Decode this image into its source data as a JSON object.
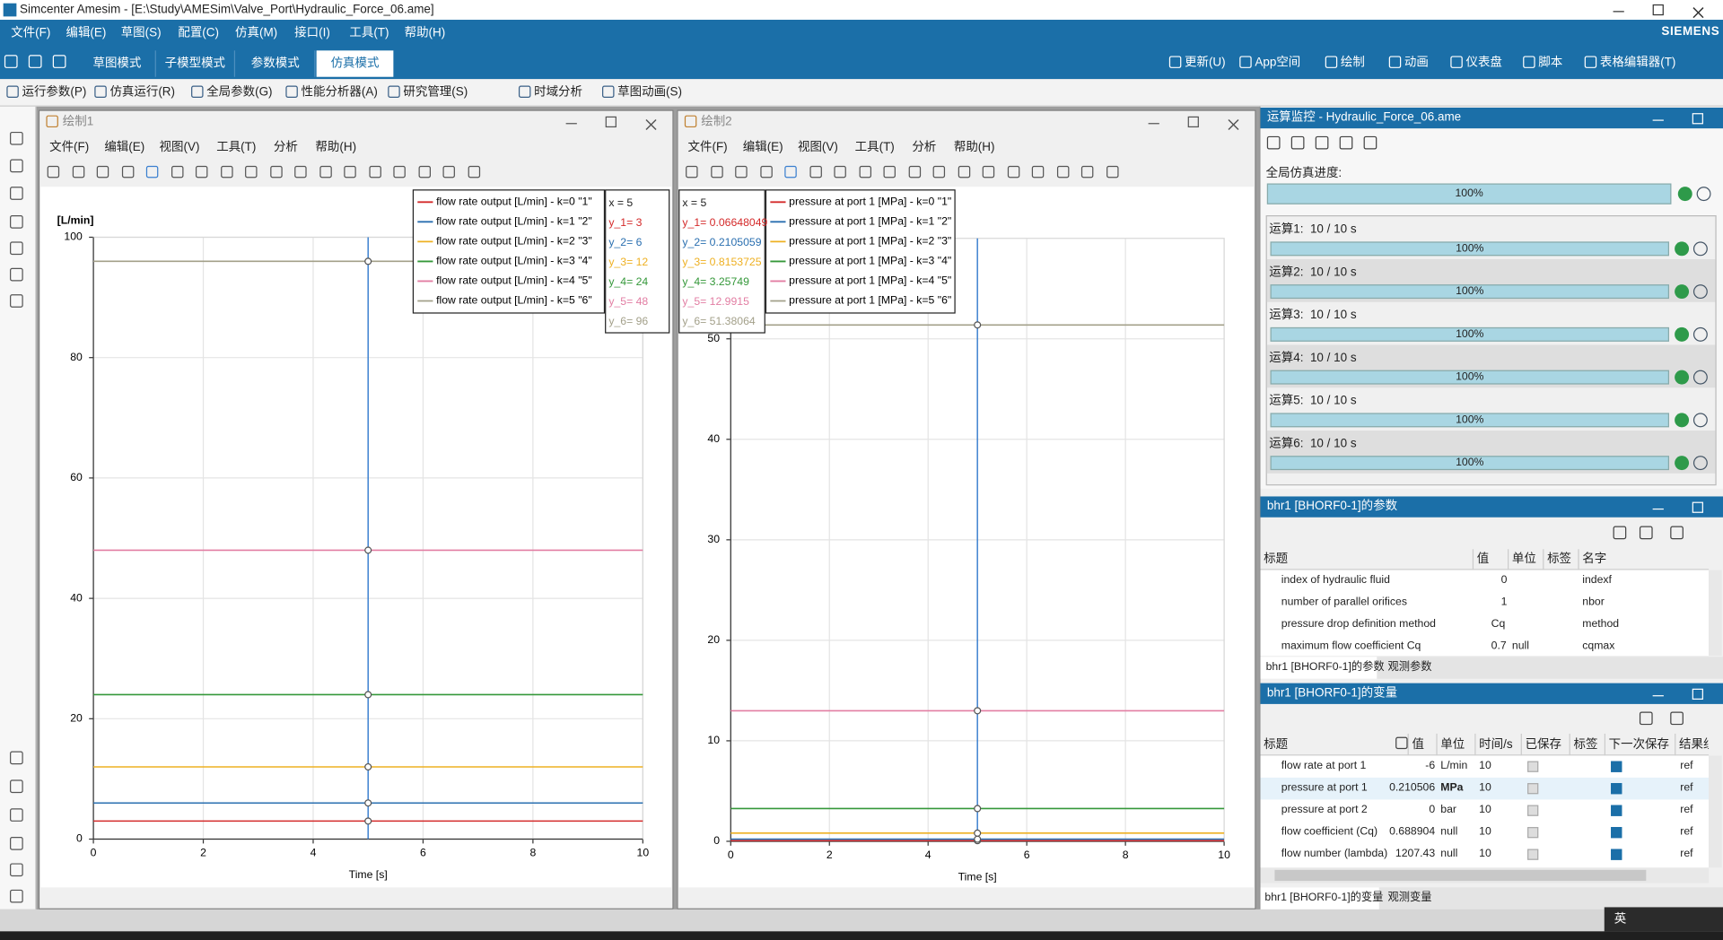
{
  "window": {
    "title": "Simcenter Amesim - [E:\\Study\\AMESim\\Valve_Port\\Hydraulic_Force_06.ame]",
    "brand": "SIEMENS"
  },
  "menu": [
    "文件(F)",
    "编辑(E)",
    "草图(S)",
    "配置(C)",
    "仿真(M)",
    "接口(I)",
    "工具(T)",
    "帮助(H)"
  ],
  "mode_tabs": [
    "草图模式",
    "子模型模式",
    "参数模式",
    "仿真模式"
  ],
  "top_actions": [
    "更新(U)",
    "App空间",
    "绘制",
    "动画",
    "仪表盘",
    "脚本",
    "表格编辑器(T)"
  ],
  "toolbar": [
    "运行参数(P)",
    "仿真运行(R)",
    "全局参数(G)",
    "性能分析器(A)",
    "研究管理(S)",
    "时域分析",
    "草图动画(S)"
  ],
  "plot_windows": [
    {
      "title": "绘制1",
      "menu": [
        "文件(F)",
        "编辑(E)",
        "视图(V)",
        "工具(T)",
        "分析",
        "帮助(H)"
      ],
      "cursor": [
        "x   = 5",
        "y_1= 3",
        "y_2= 6",
        "y_3= 12",
        "y_4= 24",
        "y_5= 48",
        "y_6= 96"
      ]
    },
    {
      "title": "绘制2",
      "menu": [
        "文件(F)",
        "编辑(E)",
        "视图(V)",
        "工具(T)",
        "分析",
        "帮助(H)"
      ],
      "cursor": [
        "x   = 5",
        "y_1= 0.06648049",
        "y_2= 0.2105059",
        "y_3= 0.8153725",
        "y_4= 3.25749",
        "y_5= 12.9915",
        "y_6= 51.38064"
      ]
    }
  ],
  "chart_data": [
    {
      "type": "line",
      "ylabel": "[L/min]",
      "xlabel": "Time [s]",
      "x": [
        0,
        5,
        10
      ],
      "xlim": [
        0,
        10
      ],
      "xticks": [
        0,
        2,
        4,
        6,
        8,
        10
      ],
      "ylim": [
        0,
        100
      ],
      "yticks": [
        0,
        20,
        40,
        60,
        80,
        100
      ],
      "grid": true,
      "cursor_x": 5,
      "series": [
        {
          "name": "flow rate output [L/min] - k=0  \"1\"",
          "color": "#d42a2a",
          "values": [
            3,
            3,
            3
          ]
        },
        {
          "name": "flow rate output [L/min] - k=1  \"2\"",
          "color": "#2a6fb0",
          "values": [
            6,
            6,
            6
          ]
        },
        {
          "name": "flow rate output [L/min] - k=2  \"3\"",
          "color": "#eeb022",
          "values": [
            12,
            12,
            12
          ]
        },
        {
          "name": "flow rate output [L/min] - k=3  \"4\"",
          "color": "#35983a",
          "values": [
            24,
            24,
            24
          ]
        },
        {
          "name": "flow rate output [L/min] - k=4  \"5\"",
          "color": "#e27ea3",
          "values": [
            48,
            48,
            48
          ]
        },
        {
          "name": "flow rate output [L/min] - k=5  \"6\"",
          "color": "#a3a08a",
          "values": [
            96,
            96,
            96
          ]
        }
      ]
    },
    {
      "type": "line",
      "xlabel": "Time [s]",
      "x": [
        0,
        5,
        10
      ],
      "xlim": [
        0,
        10
      ],
      "xticks": [
        0,
        2,
        4,
        6,
        8,
        10
      ],
      "ylim": [
        0,
        60
      ],
      "yticks": [
        0,
        10,
        20,
        30,
        40,
        50
      ],
      "grid": true,
      "cursor_x": 5,
      "series": [
        {
          "name": "pressure at port 1 [MPa] - k=0  \"1\"",
          "color": "#d42a2a",
          "values": [
            0.06648049,
            0.06648049,
            0.06648049
          ]
        },
        {
          "name": "pressure at port 1 [MPa] - k=1  \"2\"",
          "color": "#2a6fb0",
          "values": [
            0.2105059,
            0.2105059,
            0.2105059
          ]
        },
        {
          "name": "pressure at port 1 [MPa] - k=2  \"3\"",
          "color": "#eeb022",
          "values": [
            0.8153725,
            0.8153725,
            0.8153725
          ]
        },
        {
          "name": "pressure at port 1 [MPa] - k=3  \"4\"",
          "color": "#35983a",
          "values": [
            3.25749,
            3.25749,
            3.25749
          ]
        },
        {
          "name": "pressure at port 1 [MPa] - k=4  \"5\"",
          "color": "#e27ea3",
          "values": [
            12.9915,
            12.9915,
            12.9915
          ]
        },
        {
          "name": "pressure at port 1 [MPa] - k=5  \"6\"",
          "color": "#a3a08a",
          "values": [
            51.38064,
            51.38064,
            51.38064
          ]
        }
      ]
    }
  ],
  "monitor": {
    "title": "运算监控 - Hydraulic_Force_06.ame",
    "global_label": "全局仿真进度:",
    "global_progress": "100%",
    "runs": [
      {
        "label": "运算1:  10 / 10 s",
        "progress": "100%"
      },
      {
        "label": "运算2:  10 / 10 s",
        "progress": "100%"
      },
      {
        "label": "运算3:  10 / 10 s",
        "progress": "100%"
      },
      {
        "label": "运算4:  10 / 10 s",
        "progress": "100%"
      },
      {
        "label": "运算5:  10 / 10 s",
        "progress": "100%"
      },
      {
        "label": "运算6:  10 / 10 s",
        "progress": "100%"
      }
    ]
  },
  "params_panel": {
    "title": "bhr1 [BHORF0-1]的参数",
    "columns": [
      "标题",
      "值",
      "单位",
      "标签",
      "名字"
    ],
    "rows": [
      [
        "index of hydraulic fluid",
        "0",
        null,
        null,
        "indexf"
      ],
      [
        "number of parallel orifices",
        "1",
        null,
        null,
        "nbor"
      ],
      [
        "pressure drop definition method",
        "Cq",
        null,
        null,
        "method"
      ],
      [
        "maximum flow coefficient Cq",
        "0.7",
        "null",
        null,
        "cqmax"
      ]
    ],
    "tabs": [
      "bhr1 [BHORF0-1]的参数",
      "观测参数"
    ]
  },
  "vars_panel": {
    "title": "bhr1 [BHORF0-1]的变量",
    "columns": [
      "标题",
      "值",
      "单位",
      "时间/s",
      "已保存",
      "标签",
      "下一次保存",
      "结果组"
    ],
    "rows": [
      [
        "flow rate at port 1",
        "-6",
        "L/min",
        "10",
        null,
        null,
        null,
        "ref"
      ],
      [
        "pressure at port 1",
        "0.210506",
        "MPa",
        "10",
        null,
        null,
        null,
        "ref"
      ],
      [
        "pressure at port 2",
        "0",
        "bar",
        "10",
        null,
        null,
        null,
        "ref"
      ],
      [
        "flow coefficient (Cq)",
        "0.688904",
        "null",
        "10",
        null,
        null,
        null,
        "ref"
      ],
      [
        "flow number (lambda)",
        "1207.43",
        "null",
        "10",
        null,
        null,
        null,
        "ref"
      ]
    ],
    "tabs": [
      "bhr1 [BHORF0-1]的变量",
      "观测变量"
    ]
  },
  "taskbar": {
    "ime": "英"
  }
}
